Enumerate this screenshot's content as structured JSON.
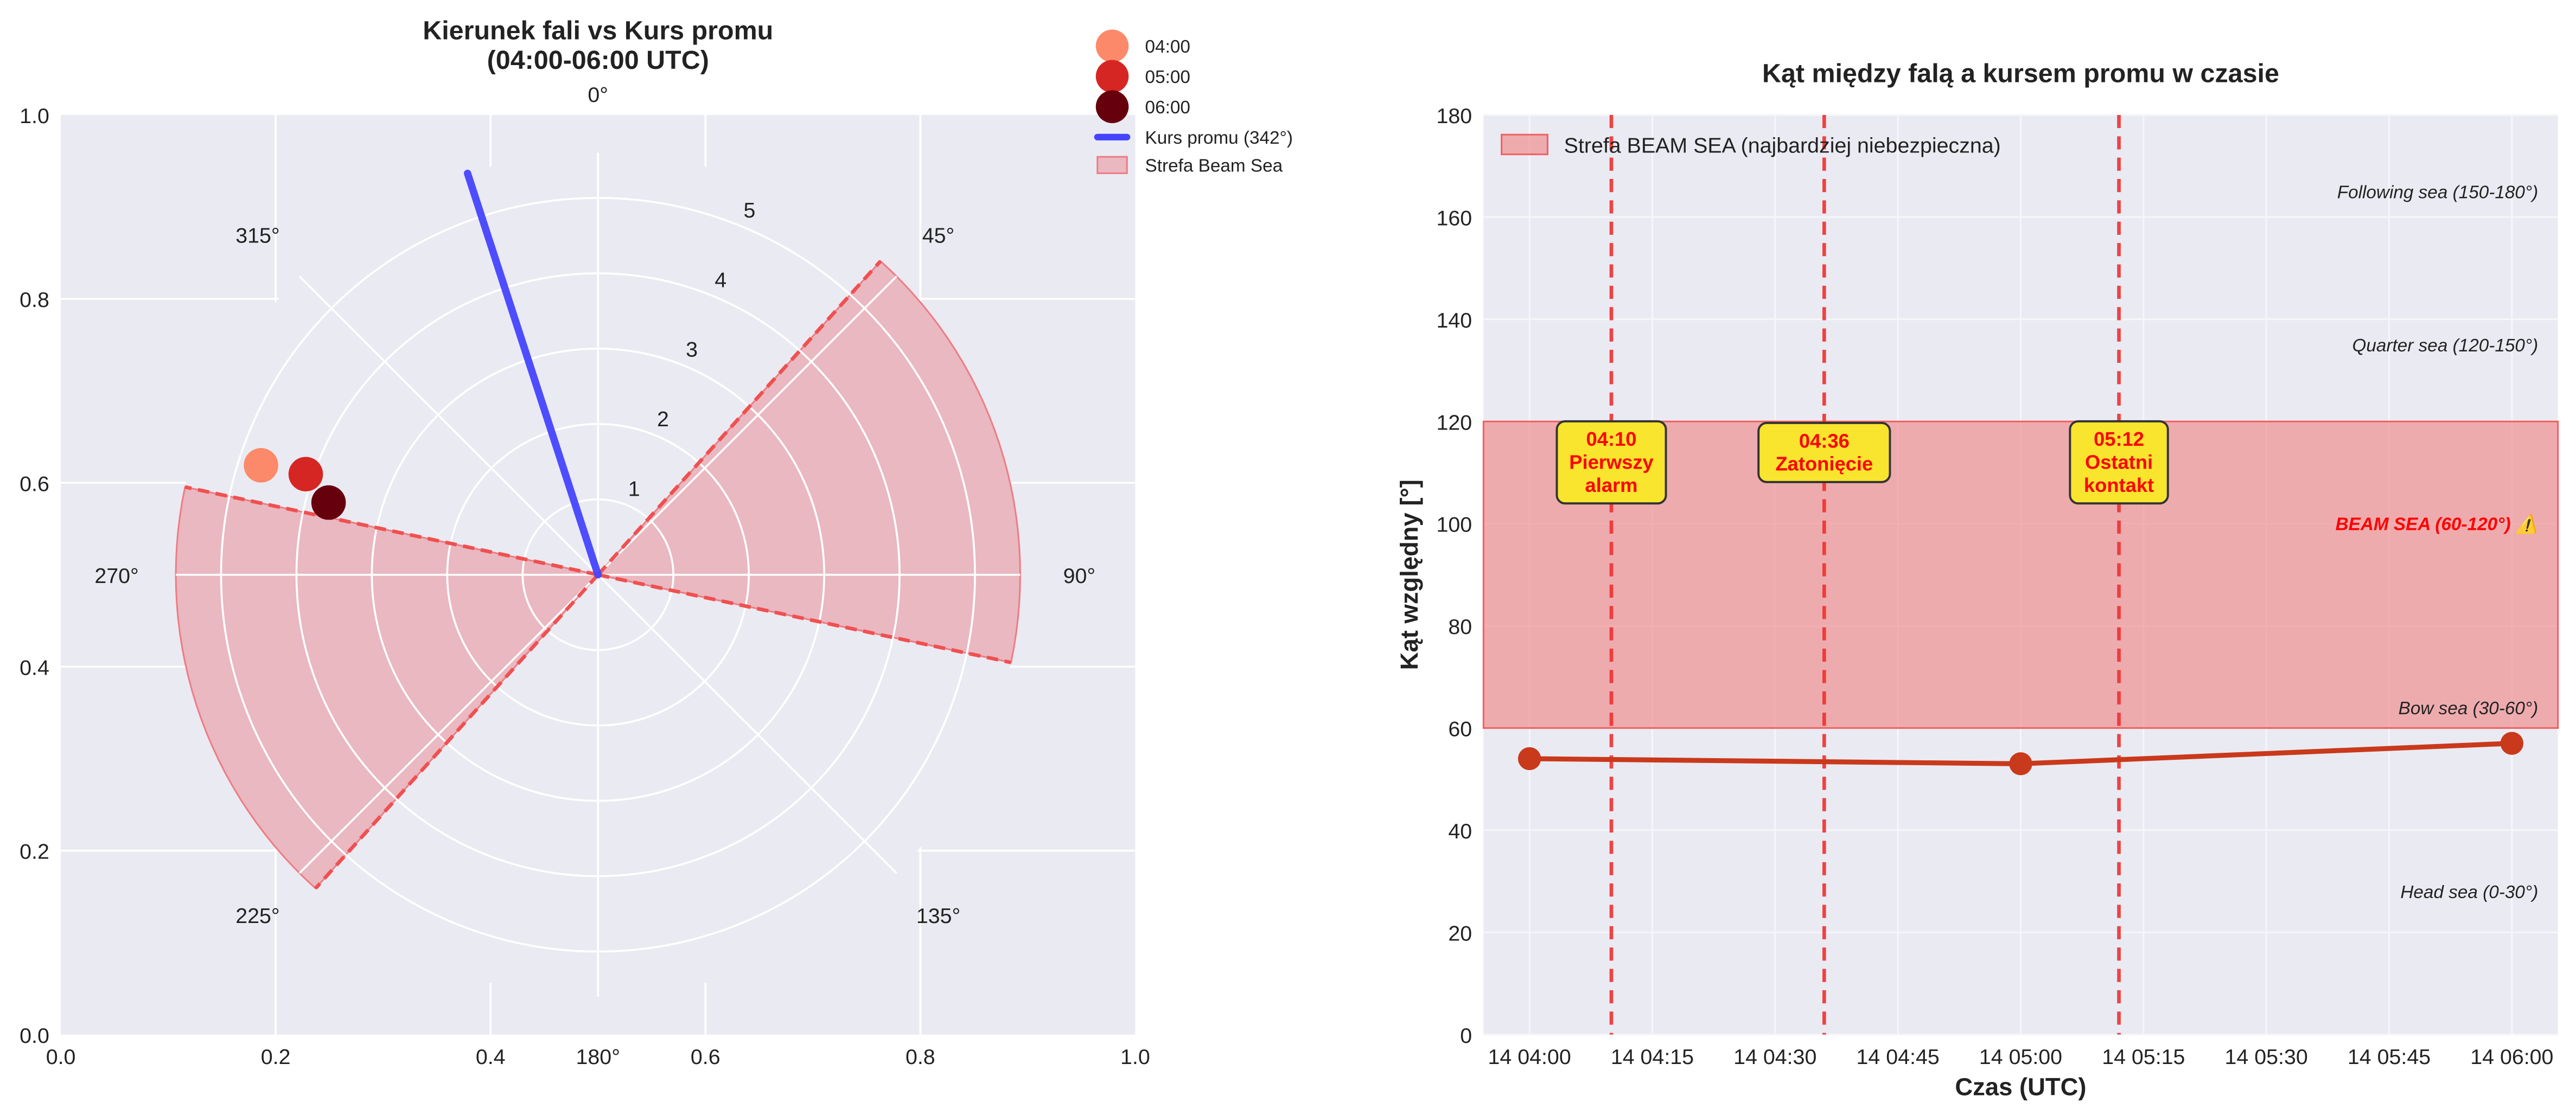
{
  "chart_data": [
    {
      "type": "polar-scatter",
      "title": "Kierunek fali vs Kurs promu\n(04:00-06:00 UTC)",
      "title_lines": [
        "Kierunek fali vs Kurs promu",
        "(04:00-06:00 UTC)"
      ],
      "theta_direction": "clockwise",
      "theta_zero": "north",
      "theta_tick_labels": [
        "0°",
        "45°",
        "90°",
        "135°",
        "180°",
        "225°",
        "270°",
        "315°"
      ],
      "r_tick_labels": [
        "1",
        "2",
        "3",
        "4",
        "5"
      ],
      "rlim": [
        0,
        5.6
      ],
      "cartesian_frame": {
        "x_tick_labels": [
          "0.0",
          "0.2",
          "0.4",
          "0.6",
          "0.8",
          "1.0"
        ],
        "y_tick_labels": [
          "0.0",
          "0.2",
          "0.4",
          "0.6",
          "0.8",
          "1.0"
        ]
      },
      "points": [
        {
          "name": "04:00",
          "theta": 288,
          "r": 4.7,
          "color": "#fc8a6a"
        },
        {
          "name": "05:00",
          "theta": 289,
          "r": 4.1,
          "color": "#d62623"
        },
        {
          "name": "06:00",
          "theta": 285,
          "r": 3.7,
          "color": "#67000d"
        }
      ],
      "course": {
        "name": "Kurs promu (342°)",
        "theta": 342,
        "color": "#4444ff"
      },
      "beam_zones": {
        "name": "Strefa Beam Sea",
        "ranges": [
          [
            42,
            102
          ],
          [
            222,
            282
          ]
        ],
        "color": "#e8868f"
      },
      "legend": [
        "04:00",
        "05:00",
        "06:00",
        "Kurs promu (342°)",
        "Strefa Beam Sea"
      ],
      "legend_position": "top-right outside"
    },
    {
      "type": "line",
      "title": "Kąt między falą a kursem promu w czasie",
      "xlabel": "Czas (UTC)",
      "ylabel": "Kąt względny [°]",
      "ylim": [
        0,
        180
      ],
      "y_ticks": [
        0,
        20,
        40,
        60,
        80,
        100,
        120,
        140,
        160,
        180
      ],
      "x_tick_labels": [
        "14 04:00",
        "14 04:15",
        "14 04:30",
        "14 04:45",
        "14 05:00",
        "14 05:15",
        "14 05:30",
        "14 05:45",
        "14 06:00"
      ],
      "x": [
        "04:00",
        "05:00",
        "06:00"
      ],
      "values": [
        54,
        53,
        57
      ],
      "line_color": "#c9391b",
      "grid": true,
      "beam_band": {
        "label": "Strefa BEAM SEA (najbardziej niebezpieczna)",
        "from": 60,
        "to": 120,
        "color": "#f08080"
      },
      "legend_position": "top-left",
      "zone_labels": [
        {
          "text": "Following sea (150-180°)",
          "y": 165,
          "emphasis": false
        },
        {
          "text": "Quarter sea (120-150°)",
          "y": 135,
          "emphasis": false
        },
        {
          "text": "BEAM SEA (60-120°) ⚠️",
          "y": 100,
          "emphasis": true
        },
        {
          "text": "Bow sea (30-60°)",
          "y": 64,
          "emphasis": false
        },
        {
          "text": "Head sea (0-30°)",
          "y": 28,
          "emphasis": false
        }
      ],
      "events": [
        {
          "time": "04:10",
          "label": [
            "04:10",
            "Pierwszy",
            "alarm"
          ]
        },
        {
          "time": "04:36",
          "label": [
            "04:36",
            "Zatonięcie"
          ]
        },
        {
          "time": "05:12",
          "label": [
            "05:12",
            "Ostatni",
            "kontakt"
          ]
        }
      ]
    }
  ]
}
